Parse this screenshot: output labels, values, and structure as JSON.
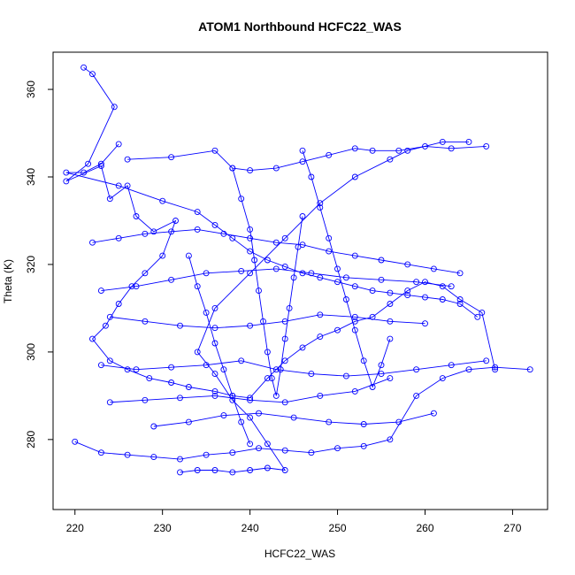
{
  "chart_data": {
    "type": "line",
    "title": "ATOM1 Northbound HCFC22_WAS",
    "xlabel": "HCFC22_WAS",
    "ylabel": "Theta (K)",
    "xlim": [
      217.5,
      274.0
    ],
    "ylim": [
      264.0,
      368.5
    ],
    "x_ticks": [
      220,
      230,
      240,
      250,
      260,
      270
    ],
    "y_ticks": [
      280,
      300,
      320,
      340,
      360
    ],
    "grid": false,
    "legend": "none",
    "series_color": "#0000ff",
    "marker": "open-circle",
    "series": [
      {
        "x": [
          221.0,
          222.0,
          224.5,
          221.5,
          219.0,
          223.0,
          224.0,
          226.0,
          227.0,
          229.0,
          231.5,
          230.0,
          228.0,
          226.5,
          225.0,
          223.5,
          222.0,
          224.0,
          226.0,
          228.5,
          231.0,
          233.0,
          236.0,
          238.0,
          240.0,
          242.0,
          244.0,
          246.0,
          248.0,
          250.0,
          252.0,
          254.0,
          256.0,
          258.0,
          260.0,
          262.0,
          264.0,
          266.5,
          268.0
        ],
        "y": [
          365.0,
          363.5,
          356.0,
          343.0,
          339.0,
          342.5,
          335.0,
          338.0,
          331.0,
          327.5,
          330.0,
          322.0,
          318.0,
          315.0,
          311.0,
          306.0,
          303.0,
          298.0,
          296.0,
          294.0,
          293.0,
          292.0,
          291.0,
          290.0,
          289.5,
          294.0,
          298.0,
          301.0,
          303.5,
          305.0,
          307.0,
          308.0,
          311.0,
          314.0,
          316.0,
          315.0,
          312.0,
          309.0,
          296.0
        ]
      },
      {
        "x": [
          220.0,
          223.0,
          226.0,
          229.0,
          232.0,
          235.0,
          238.0,
          241.0,
          244.0,
          247.0,
          250.0,
          253.0,
          256.0,
          259.0,
          262.0,
          265.0,
          268.0,
          272.0
        ],
        "y": [
          279.5,
          277.0,
          276.5,
          276.0,
          275.5,
          276.5,
          277.0,
          278.0,
          277.5,
          277.0,
          278.0,
          278.5,
          280.0,
          290.0,
          294.0,
          296.0,
          296.5,
          296.0
        ]
      },
      {
        "x": [
          232.0,
          234.0,
          236.0,
          238.0,
          240.0,
          242.0,
          244.0,
          242.0,
          240.0,
          238.0,
          236.0,
          234.0,
          236.0,
          240.0,
          244.0,
          248.0,
          252.0,
          256.0,
          258.0,
          262.0,
          265.0
        ],
        "y": [
          272.5,
          273.0,
          273.0,
          272.5,
          273.0,
          273.5,
          273.0,
          279.0,
          285.0,
          289.0,
          295.0,
          300.0,
          310.0,
          318.0,
          326.0,
          334.0,
          340.0,
          344.0,
          346.0,
          348.0,
          348.0
        ]
      },
      {
        "x": [
          226.0,
          231.0,
          236.0,
          238.0,
          240.0,
          243.0,
          246.0,
          249.0,
          252.0,
          254.0,
          257.0,
          260.0,
          263.0,
          267.0
        ],
        "y": [
          344.0,
          344.5,
          346.0,
          342.0,
          341.5,
          342.0,
          343.5,
          345.0,
          346.5,
          346.0,
          346.0,
          347.0,
          346.5,
          347.0
        ]
      },
      {
        "x": [
          225.0,
          223.0,
          221.0,
          219.0,
          225.0,
          230.0,
          234.0,
          236.0,
          238.0,
          240.0,
          242.0,
          244.0,
          246.0,
          248.0,
          250.0,
          252.0,
          254.0,
          256.0,
          258.0,
          260.0,
          262.0,
          264.0,
          266.0
        ],
        "y": [
          347.5,
          343.0,
          341.0,
          341.0,
          338.0,
          334.5,
          332.0,
          329.0,
          326.0,
          323.0,
          321.0,
          319.5,
          318.0,
          317.0,
          316.0,
          315.0,
          314.0,
          313.5,
          313.0,
          312.5,
          312.0,
          311.0,
          308.0
        ]
      },
      {
        "x": [
          222.0,
          225.0,
          228.0,
          231.0,
          234.0,
          237.0,
          240.0,
          243.0,
          246.0,
          249.0,
          252.0,
          255.0,
          258.0,
          261.0,
          264.0
        ],
        "y": [
          325.0,
          326.0,
          327.0,
          327.5,
          328.0,
          327.0,
          326.0,
          325.0,
          324.5,
          323.0,
          322.0,
          321.0,
          320.0,
          319.0,
          318.0
        ]
      },
      {
        "x": [
          223.0,
          227.0,
          231.0,
          235.0,
          239.0,
          243.0,
          247.0,
          251.0,
          255.0,
          259.0,
          263.0
        ],
        "y": [
          314.0,
          315.0,
          316.5,
          318.0,
          318.5,
          319.0,
          318.0,
          317.0,
          316.5,
          316.0,
          315.0
        ]
      },
      {
        "x": [
          224.0,
          228.0,
          232.0,
          236.0,
          240.0,
          244.0,
          248.0,
          252.0,
          256.0,
          260.0
        ],
        "y": [
          308.0,
          307.0,
          306.0,
          305.5,
          306.0,
          307.0,
          308.5,
          308.0,
          307.0,
          306.5
        ]
      },
      {
        "x": [
          223.0,
          227.0,
          231.0,
          235.0,
          239.0,
          243.0,
          247.0,
          251.0,
          255.0,
          259.0,
          263.0,
          267.0
        ],
        "y": [
          297.0,
          296.0,
          296.5,
          297.0,
          298.0,
          296.0,
          295.0,
          294.5,
          295.0,
          296.0,
          297.0,
          298.0
        ]
      },
      {
        "x": [
          224.0,
          228.0,
          232.0,
          236.0,
          240.0,
          244.0,
          248.0,
          252.0,
          256.0
        ],
        "y": [
          288.5,
          289.0,
          289.5,
          290.0,
          289.0,
          288.5,
          290.0,
          291.0,
          294.0
        ]
      },
      {
        "x": [
          238.0,
          239.0,
          240.0,
          240.5,
          241.0,
          241.5,
          242.0,
          242.5,
          243.0,
          243.5,
          244.0,
          244.5,
          245.0,
          245.5,
          246.0
        ],
        "y": [
          342.0,
          335.0,
          328.0,
          321.0,
          314.0,
          307.0,
          300.0,
          294.0,
          290.0,
          296.0,
          303.0,
          310.0,
          317.0,
          324.0,
          331.0
        ]
      },
      {
        "x": [
          246.0,
          247.0,
          248.0,
          249.0,
          250.0,
          251.0,
          252.0,
          253.0,
          254.0,
          255.0,
          256.0
        ],
        "y": [
          346.0,
          340.0,
          333.0,
          326.0,
          319.0,
          312.0,
          305.0,
          298.0,
          292.0,
          297.0,
          303.0
        ]
      },
      {
        "x": [
          233.0,
          234.0,
          235.0,
          236.0,
          237.0,
          238.0,
          239.0,
          240.0
        ],
        "y": [
          322.0,
          315.0,
          309.0,
          302.0,
          296.0,
          290.0,
          284.0,
          279.0
        ]
      },
      {
        "x": [
          229.0,
          233.0,
          237.0,
          241.0,
          245.0,
          249.0,
          253.0,
          257.0,
          261.0
        ],
        "y": [
          283.0,
          284.0,
          285.5,
          286.0,
          285.0,
          284.0,
          283.5,
          284.0,
          286.0
        ]
      }
    ]
  }
}
